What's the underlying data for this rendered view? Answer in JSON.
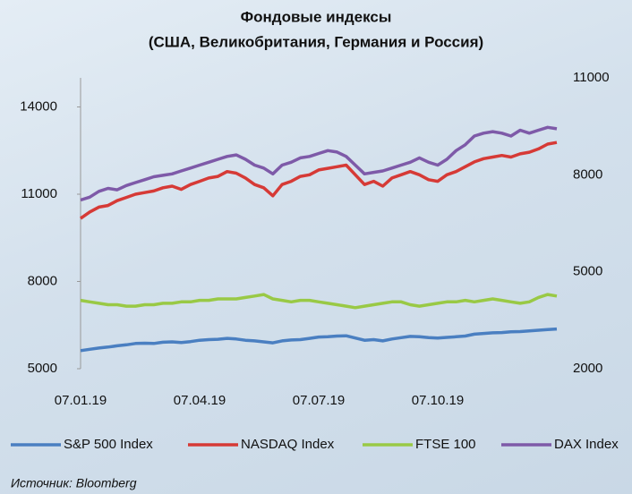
{
  "chart_data": {
    "type": "line",
    "title": "Фондовые индексы",
    "subtitle": "(США, Великобритания, Германия и Россия)",
    "source": "Источник: Bloomberg",
    "categories": [
      "07.01.19",
      null,
      null,
      null,
      null,
      null,
      null,
      null,
      null,
      null,
      null,
      null,
      null,
      "07.04.19",
      null,
      null,
      null,
      null,
      null,
      null,
      null,
      null,
      null,
      null,
      null,
      null,
      "07.07.19",
      null,
      null,
      null,
      null,
      null,
      null,
      null,
      null,
      null,
      null,
      null,
      null,
      "07.10.19",
      null,
      null,
      null,
      null,
      null,
      null,
      null,
      null,
      null,
      null,
      null,
      null,
      null
    ],
    "ylim": [
      5000,
      15000
    ],
    "yticks": [
      5000,
      8000,
      11000,
      14000
    ],
    "y2lim": [
      2000,
      11000
    ],
    "y2ticks": [
      2000,
      5000,
      8000,
      11000
    ],
    "grid": false,
    "legend": "bottom",
    "series": [
      {
        "name": "S&P 500 Index",
        "color": "#4a7fc1",
        "axis": "y2",
        "values": [
          2560,
          2600,
          2640,
          2670,
          2710,
          2740,
          2780,
          2790,
          2780,
          2820,
          2830,
          2810,
          2840,
          2880,
          2900,
          2910,
          2940,
          2920,
          2880,
          2860,
          2830,
          2800,
          2860,
          2890,
          2900,
          2940,
          2980,
          2990,
          3010,
          3020,
          2950,
          2880,
          2900,
          2860,
          2920,
          2960,
          3000,
          2990,
          2960,
          2950,
          2970,
          2990,
          3010,
          3070,
          3090,
          3110,
          3120,
          3140,
          3150,
          3170,
          3190,
          3210,
          3230
        ]
      },
      {
        "name": "NASDAQ Index",
        "color": "#d63a36",
        "axis": "y2",
        "values": [
          6650,
          6850,
          7000,
          7050,
          7200,
          7300,
          7400,
          7450,
          7500,
          7600,
          7650,
          7550,
          7700,
          7800,
          7900,
          7950,
          8100,
          8050,
          7900,
          7700,
          7600,
          7350,
          7700,
          7800,
          7950,
          8000,
          8150,
          8200,
          8250,
          8300,
          8000,
          7700,
          7800,
          7650,
          7900,
          8000,
          8100,
          8000,
          7850,
          7800,
          8000,
          8100,
          8250,
          8400,
          8500,
          8550,
          8600,
          8550,
          8650,
          8700,
          8800,
          8950,
          9000
        ]
      },
      {
        "name": "FTSE 100",
        "color": "#99c945",
        "values": [
          7350,
          7300,
          7250,
          7200,
          7200,
          7150,
          7150,
          7200,
          7200,
          7250,
          7250,
          7300,
          7300,
          7350,
          7350,
          7400,
          7400,
          7400,
          7450,
          7500,
          7550,
          7400,
          7350,
          7300,
          7350,
          7350,
          7300,
          7250,
          7200,
          7150,
          7100,
          7150,
          7200,
          7250,
          7300,
          7300,
          7200,
          7150,
          7200,
          7250,
          7300,
          7300,
          7350,
          7300,
          7350,
          7400,
          7350,
          7300,
          7250,
          7300,
          7450,
          7550,
          7500
        ]
      },
      {
        "name": "DAX Index",
        "color": "#7e5aa8",
        "values": [
          10800,
          10900,
          11100,
          11200,
          11150,
          11300,
          11400,
          11500,
          11600,
          11650,
          11700,
          11800,
          11900,
          12000,
          12100,
          12200,
          12300,
          12350,
          12200,
          12000,
          11900,
          11700,
          12000,
          12100,
          12250,
          12300,
          12400,
          12500,
          12450,
          12300,
          12000,
          11700,
          11750,
          11800,
          11900,
          12000,
          12100,
          12250,
          12100,
          12000,
          12200,
          12500,
          12700,
          13000,
          13100,
          13150,
          13100,
          13000,
          13200,
          13100,
          13200,
          13300,
          13250
        ]
      }
    ]
  }
}
